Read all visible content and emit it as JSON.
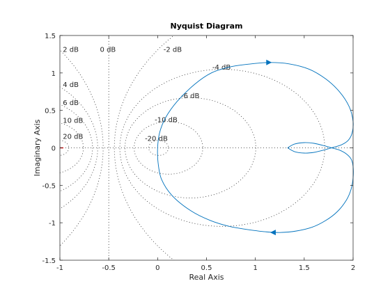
{
  "chart_data": {
    "type": "line",
    "title": "Nyquist Diagram",
    "xlabel": "Real Axis",
    "ylabel": "Imaginary Axis",
    "xlim": [
      -1,
      2
    ],
    "ylim": [
      -1.5,
      1.5
    ],
    "xticks": [
      -1,
      -0.5,
      0,
      0.5,
      1,
      1.5,
      2
    ],
    "xtick_labels": [
      "-1",
      "-0.5",
      "0",
      "0.5",
      "1",
      "1.5",
      "2"
    ],
    "yticks": [
      -1.5,
      -1,
      -0.5,
      0,
      0.5,
      1,
      1.5
    ],
    "ytick_labels": [
      "-1.5",
      "-1",
      "-0.5",
      "0",
      "0.5",
      "1",
      "1.5"
    ],
    "grid": true,
    "critical_point": [
      -1,
      0
    ],
    "mcircle_db": [
      20,
      10,
      6,
      4,
      2,
      0,
      -2,
      -4,
      -6,
      -10,
      -20
    ],
    "mcircle_labels": [
      {
        "db": 20,
        "text": "20 dB",
        "x": -0.97,
        "y": 0.16
      },
      {
        "db": 10,
        "text": "10 dB",
        "x": -0.97,
        "y": 0.37
      },
      {
        "db": 6,
        "text": "6 dB",
        "x": -0.97,
        "y": 0.61
      },
      {
        "db": 4,
        "text": "4 dB",
        "x": -0.97,
        "y": 0.85
      },
      {
        "db": 2,
        "text": "2 dB",
        "x": -0.97,
        "y": 1.32
      },
      {
        "db": 0,
        "text": "0 dB",
        "x": -0.59,
        "y": 1.32
      },
      {
        "db": -2,
        "text": "-2 dB",
        "x": 0.06,
        "y": 1.32
      },
      {
        "db": -4,
        "text": "-4 dB",
        "x": 0.56,
        "y": 1.08
      },
      {
        "db": -6,
        "text": "-6 dB",
        "x": 0.24,
        "y": 0.7
      },
      {
        "db": -10,
        "text": "-10 dB",
        "x": -0.03,
        "y": 0.38
      },
      {
        "db": -20,
        "text": "-20 dB",
        "x": -0.13,
        "y": 0.13
      }
    ],
    "series": [
      {
        "color": "#0072bd",
        "points": [
          [
            1.33,
            0.0
          ],
          [
            1.4,
            0.05
          ],
          [
            1.5,
            0.07
          ],
          [
            1.6,
            0.06
          ],
          [
            1.7,
            0.03
          ],
          [
            1.78,
            0.0
          ],
          [
            1.86,
            -0.03
          ],
          [
            1.93,
            -0.08
          ],
          [
            1.98,
            -0.15
          ],
          [
            2.0,
            -0.25
          ],
          [
            2.0,
            -0.4
          ],
          [
            1.98,
            -0.55
          ],
          [
            1.93,
            -0.7
          ],
          [
            1.84,
            -0.85
          ],
          [
            1.72,
            -0.97
          ],
          [
            1.58,
            -1.06
          ],
          [
            1.42,
            -1.11
          ],
          [
            1.25,
            -1.13
          ],
          [
            1.1,
            -1.12
          ],
          [
            0.92,
            -1.09
          ],
          [
            0.74,
            -1.05
          ],
          [
            0.54,
            -0.97
          ],
          [
            0.34,
            -0.84
          ],
          [
            0.15,
            -0.64
          ],
          [
            0.04,
            -0.42
          ],
          [
            0.005,
            -0.2
          ],
          [
            0.0,
            0.0
          ],
          [
            0.02,
            0.2
          ],
          [
            0.08,
            0.4
          ],
          [
            0.2,
            0.62
          ],
          [
            0.38,
            0.85
          ],
          [
            0.55,
            1.0
          ],
          [
            0.74,
            1.08
          ],
          [
            0.95,
            1.12
          ],
          [
            1.15,
            1.14
          ],
          [
            1.35,
            1.12
          ],
          [
            1.55,
            1.05
          ],
          [
            1.72,
            0.92
          ],
          [
            1.86,
            0.75
          ],
          [
            1.96,
            0.55
          ],
          [
            2.0,
            0.35
          ],
          [
            1.99,
            0.2
          ],
          [
            1.95,
            0.1
          ],
          [
            1.88,
            0.04
          ],
          [
            1.78,
            0.0
          ],
          [
            1.7,
            -0.03
          ],
          [
            1.6,
            -0.06
          ],
          [
            1.5,
            -0.07
          ],
          [
            1.4,
            -0.05
          ],
          [
            1.33,
            0.0
          ]
        ],
        "arrows": [
          {
            "at": [
              1.14,
              1.14
            ],
            "dir": [
              1,
              0
            ]
          },
          {
            "at": [
              1.18,
              -1.13
            ],
            "dir": [
              -1,
              0
            ]
          }
        ]
      }
    ]
  }
}
